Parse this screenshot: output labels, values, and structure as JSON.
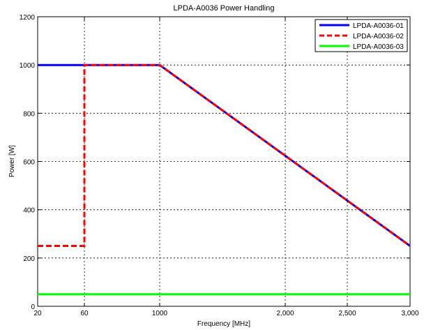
{
  "chart_data": {
    "type": "line",
    "title": "LPDA-A0036 Power Handling",
    "xlabel": "Frequency [MHz]",
    "ylabel": "Power [W]",
    "x_ticks": [
      {
        "value": 20,
        "label": "20"
      },
      {
        "value": 60,
        "label": "60"
      },
      {
        "value": 1000,
        "label": "1000"
      },
      {
        "value": 2000,
        "label": "2,000"
      },
      {
        "value": 2500,
        "label": "2,500"
      },
      {
        "value": 3000,
        "label": "3,000"
      }
    ],
    "y_ticks": [
      {
        "value": 0,
        "label": "0"
      },
      {
        "value": 200,
        "label": "200"
      },
      {
        "value": 400,
        "label": "400"
      },
      {
        "value": 600,
        "label": "600"
      },
      {
        "value": 800,
        "label": "800"
      },
      {
        "value": 1000,
        "label": "1000"
      },
      {
        "value": 1200,
        "label": "1200"
      }
    ],
    "ylim": [
      0,
      1200
    ],
    "grid": true,
    "legend_position": "top-right",
    "series": [
      {
        "name": "LPDA-A0036-01",
        "color": "#0000ff",
        "style": "solid",
        "points": [
          [
            20,
            1000
          ],
          [
            60,
            1000
          ],
          [
            1000,
            1000
          ],
          [
            3000,
            250
          ]
        ]
      },
      {
        "name": "LPDA-A0036-02",
        "color": "#ff0000",
        "style": "dashed",
        "points": [
          [
            20,
            250
          ],
          [
            60,
            250
          ],
          [
            60,
            1000
          ],
          [
            1000,
            1000
          ],
          [
            3000,
            250
          ]
        ]
      },
      {
        "name": "LPDA-A0036-03",
        "color": "#00ff00",
        "style": "solid",
        "points": [
          [
            20,
            50
          ],
          [
            3000,
            50
          ]
        ]
      }
    ]
  }
}
